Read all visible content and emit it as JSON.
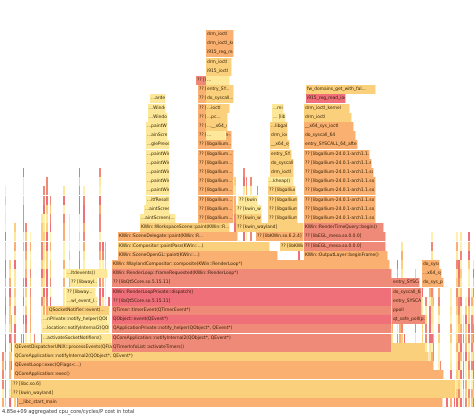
{
  "status_text": "4.85e+09 aggregated cpu_core/cycles/P cost in total",
  "colors": {
    "hot": "#f0707a",
    "red": "#f08a78",
    "orange": "#f9b070",
    "yellow": "#fbd07c",
    "pale": "#fce898",
    "light": "#fdf0b0"
  },
  "frames": [
    {
      "text": "__libc_start_main",
      "color": "orange"
    },
    {
      "text": "?? [kwin_wayland]",
      "color": "yellow"
    },
    {
      "text": "?? [libc.so.6]",
      "color": "yellow"
    },
    {
      "text": "QCoreApplication::exec()",
      "color": "orange"
    },
    {
      "text": "QEventLoop::exec(QFlags<...)",
      "color": "orange"
    },
    {
      "text": "QCoreApplication::notifyInternal2(QObject*, QEvent*)",
      "color": "yellow"
    },
    {
      "text": "QEventDispatcherUNIX::processEvents(QFlags<...)",
      "color": "yellow"
    },
    {
      "text": "...activateSocketNotifiers()",
      "color": "pale"
    },
    {
      "text": "...location::notifyInternal2(QObj...",
      "color": "pale"
    },
    {
      "text": "...nPrivate::notify_helper(QObj...",
      "color": "pale"
    },
    {
      "text": "QSocketNotifier::event(...",
      "color": "yellow"
    },
    {
      "text": "...wl_event_l...",
      "color": "pale"
    },
    {
      "text": "?? [libway...",
      "color": "pale"
    },
    {
      "text": "?? [libwayl...",
      "color": "pale"
    },
    {
      "text": "...ltdevents()",
      "color": "pale"
    },
    {
      "text": "QTimerInfoList::activateTimers()",
      "color": "red"
    },
    {
      "text": "QCoreApplication::notifyInternal2(QObject*, QEvent*)",
      "color": "red"
    },
    {
      "text": "QApplicationPrivate::notify_helper(QObject*, QEvent*)",
      "color": "red"
    },
    {
      "text": "QObject::event(QEvent*)",
      "color": "hot"
    },
    {
      "text": "QTimer::timerEvent(QTimerEvent*)",
      "color": "red"
    },
    {
      "text": "?? [libQt5Core.so.5.15.11]",
      "color": "hot"
    },
    {
      "text": "KWin::RenderLoopPrivate::dispatch()",
      "color": "hot"
    },
    {
      "text": "?? [libQt5Core.so.5.15.11]",
      "color": "red"
    },
    {
      "text": "KWin::RenderLoop::frameRequested(KWin::RenderLoop*)",
      "color": "red"
    },
    {
      "text": "KWin::WaylandCompositor::composite(KWin::RenderLoop*)",
      "color": "orange"
    },
    {
      "text": "KWin::SceneOpenGL::paint(KWin::...)",
      "color": "orange"
    },
    {
      "text": "KWin::Compositor::paintPass(KWin::...)",
      "color": "yellow"
    },
    {
      "text": "KWin::SceneDelegate::paint(KWin::R...",
      "color": "orange"
    },
    {
      "text": "KWin::WorkspaceScene::paint(KWin::R...",
      "color": "yellow"
    },
    {
      "text": "...aintScreen(...)",
      "color": "pale"
    },
    {
      "text": "...aintScreen...",
      "color": "pale"
    },
    {
      "text": "...itfResoll...",
      "color": "pale"
    },
    {
      "text": "...paintWindow(...)",
      "color": "pale"
    },
    {
      "text": "...paintWindow(...)",
      "color": "pale"
    },
    {
      "text": "...paintWindow(...)",
      "color": "pale"
    },
    {
      "text": "...paintWindow(...)",
      "color": "pale"
    },
    {
      "text": "...paintWindow(...)",
      "color": "pale"
    },
    {
      "text": "...glePresent()",
      "color": "pale"
    },
    {
      "text": "...ainScreen(...)",
      "color": "pale"
    },
    {
      "text": "...paintWindow(...)",
      "color": "pale"
    },
    {
      "text": "...Window(...)",
      "color": "pale"
    },
    {
      "text": "...Window(...)",
      "color": "pale"
    },
    {
      "text": "...arden(...)",
      "color": "pale"
    },
    {
      "text": "?? [libgallium...]",
      "color": "orange"
    },
    {
      "text": "?? [libgallium...]",
      "color": "orange"
    },
    {
      "text": "?? [libgallium...]",
      "color": "orange"
    },
    {
      "text": "?? [libgallium...]",
      "color": "orange"
    },
    {
      "text": "?? [libgallium...]",
      "color": "orange"
    },
    {
      "text": "?? [libgallium...]",
      "color": "orange"
    },
    {
      "text": "?? [libgallium...]",
      "color": "orange"
    },
    {
      "text": "?? [libgallium...]",
      "color": "orange"
    },
    {
      "text": "?? [libgallium...]",
      "color": "orange"
    },
    {
      "text": "?? [libgallium-...]",
      "color": "orange"
    },
    {
      "text": "?? [libgallium-...]",
      "color": "orange"
    },
    {
      "text": "?? [libgallium-...]",
      "color": "orange"
    },
    {
      "text": "?? [libgallium-...]",
      "color": "orange"
    },
    {
      "text": "?? [libgallium-...]",
      "color": "orange"
    },
    {
      "text": "?? [libgallium-...]",
      "color": "orange"
    },
    {
      "text": "?? [libgallium...]",
      "color": "red"
    },
    {
      "text": "drm_ioctl",
      "color": "orange"
    },
    {
      "text": "drm_ioctl_kernel",
      "color": "orange"
    },
    {
      "text": "i915_reg_read_ioctl",
      "color": "orange"
    },
    {
      "text": "drm_ioctl",
      "color": "yellow"
    },
    {
      "text": "i915_ioctl",
      "color": "yellow"
    },
    {
      "text": "...",
      "color": "pale"
    },
    {
      "text": "entry_SY...",
      "color": "yellow"
    },
    {
      "text": "do_syscall...",
      "color": "yellow"
    },
    {
      "text": "...ioctl",
      "color": "yellow"
    },
    {
      "text": "...pc...",
      "color": "yellow"
    },
    {
      "text": "...__x64_sy...",
      "color": "yellow"
    },
    {
      "text": "...",
      "color": "pale"
    },
    {
      "text": "?? [libgallium-...]",
      "color": "yellow"
    },
    {
      "text": "?? [libgallium-...]",
      "color": "yellow"
    },
    {
      "text": "?? [libgallium-...]",
      "color": "yellow"
    },
    {
      "text": "?? [libgallium-...]",
      "color": "yellow"
    },
    {
      "text": "...kheap()",
      "color": "pale"
    },
    {
      "text": "drm_ioctl",
      "color": "yellow"
    },
    {
      "text": "do_syscall_64",
      "color": "yellow"
    },
    {
      "text": "entry_SY...",
      "color": "yellow"
    },
    {
      "text": "__x64_sys_ioctl",
      "color": "yellow"
    },
    {
      "text": "drm_ioctl",
      "color": "yellow"
    },
    {
      "text": "...libgall...",
      "color": "yellow"
    },
    {
      "text": "... [libgall...",
      "color": "pale"
    },
    {
      "text": "...mingbal",
      "color": "pale"
    },
    {
      "text": "?? [libgallium-24.0.1-arch1.1.so]",
      "color": "orange"
    },
    {
      "text": "?? [libgallium-24.0.1-arch1.1.so]",
      "color": "orange"
    },
    {
      "text": "?? [libgallium-24.0.1-arch1.1.so]",
      "color": "orange"
    },
    {
      "text": "?? [libgallium-24.0.1-arch1.1.so]",
      "color": "orange"
    },
    {
      "text": "?? [libgallium-24.0.1-arch1.1.so]",
      "color": "orange"
    },
    {
      "text": "?? [libgallium-24.0.1-arch1.1.so]",
      "color": "orange"
    },
    {
      "text": "?? [libgallium-24.0.1-arch1.1.so]",
      "color": "orange"
    },
    {
      "text": "?? [libgallium-24.0.1-arch1.1.so]",
      "color": "orange"
    },
    {
      "text": "?? [libEGL_mesa.so.0.0.0]",
      "color": "red"
    },
    {
      "text": "?? [libEGL_mesa.so.0.0.0]",
      "color": "red"
    },
    {
      "text": "KWin::RenderTimeQuery::begin()",
      "color": "red"
    },
    {
      "text": "KWin::OutputLayer::beginFrame()",
      "color": "orange"
    },
    {
      "text": "?? [libKWin.so.6.2.4]",
      "color": "yellow"
    },
    {
      "text": "?? [libKWin.so.6.2.4]",
      "color": "orange"
    },
    {
      "text": "?? [kwin_wayland]",
      "color": "yellow"
    },
    {
      "text": "?? [kwin_wayland]",
      "color": "yellow"
    },
    {
      "text": "?? [kwin_wayland]",
      "color": "pale"
    },
    {
      "text": "?? [kwin...",
      "color": "pale"
    },
    {
      "text": "entry_SYSCALL_64_after_hw...",
      "color": "orange"
    },
    {
      "text": "do_syscall_64",
      "color": "orange"
    },
    {
      "text": "__x64_sys_ioctl",
      "color": "orange"
    },
    {
      "text": "drm_ioctl",
      "color": "yellow"
    },
    {
      "text": "drm_ioctl_kernel",
      "color": "yellow"
    },
    {
      "text": "i915_reg_read_ioctl",
      "color": "hot"
    },
    {
      "text": "fw_domains_get_with_fal...",
      "color": "yellow"
    },
    {
      "text": "entry_SYSCALL_64_after_hw...",
      "color": "red"
    },
    {
      "text": "do_syscall_64",
      "color": "red"
    },
    {
      "text": "entry_SYSCAL...",
      "color": "red"
    },
    {
      "text": "ppoll",
      "color": "red"
    },
    {
      "text": "qt_safe_poll(p...",
      "color": "red"
    },
    {
      "text": "do_sys_poll",
      "color": "orange"
    },
    {
      "text": "...x64_sys_pol...",
      "color": "orange"
    },
    {
      "text": "do_syscall_64",
      "color": "orange"
    }
  ]
}
